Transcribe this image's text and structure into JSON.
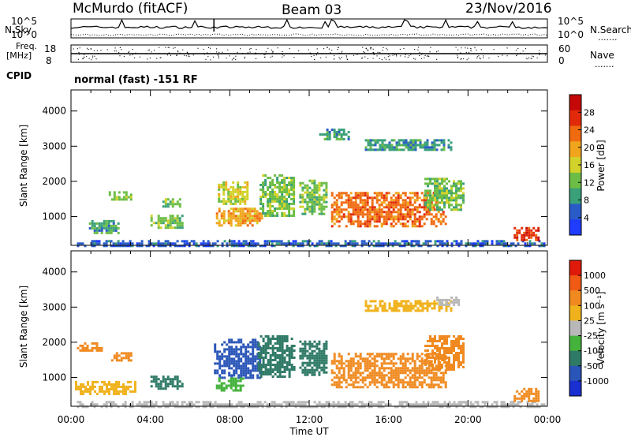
{
  "header": {
    "station": "McMurdo (fitACF)",
    "beam": "Beam 03",
    "date": "23/Nov/2016",
    "mode": "normal (fast) -151 RF"
  },
  "aux_labels": {
    "nsky": "N.Sky",
    "freq_line1": "Freq.",
    "freq_line2": "[MHz]",
    "cpid": "CPID",
    "nsearch": "N.Search",
    "nave": "Nave",
    "dots": "......."
  },
  "aux_ticks": {
    "noise_left": [
      "10^5",
      "10^0"
    ],
    "noise_right": [
      "10^5",
      "10^0"
    ],
    "freq_left": [
      "18",
      "8"
    ],
    "freq_right": [
      "60",
      "0"
    ]
  },
  "chart_data": [
    {
      "type": "heatmap",
      "panel": "power",
      "title": "",
      "xlabel": "Time UT",
      "ylabel": "Slant Range [km]",
      "x_ticks": [
        "00:00",
        "04:00",
        "08:00",
        "12:00",
        "16:00",
        "20:00",
        "00:00"
      ],
      "x_range_hours": [
        0,
        24
      ],
      "y_ticks": [
        1000,
        2000,
        3000,
        4000
      ],
      "y_range_km": [
        180,
        4600
      ],
      "colorbar_label": "Power [dB]",
      "colorbar_ticks": [
        "4",
        "8",
        "12",
        "16",
        "20",
        "24",
        "28"
      ],
      "colorbar_range": [
        0,
        32
      ],
      "colormap": [
        "#1f3cff",
        "#2a5cc8",
        "#3aa07a",
        "#6cbd45",
        "#d2d22a",
        "#f0a51c",
        "#f06a10",
        "#e22a0a",
        "#c40808"
      ],
      "regions": [
        {
          "t0": 0.3,
          "t1": 23.9,
          "r0": 190,
          "r1": 330,
          "level": 4
        },
        {
          "t0": 0.9,
          "t1": 2.4,
          "r0": 560,
          "r1": 900,
          "level": 9
        },
        {
          "t0": 1.9,
          "t1": 3.0,
          "r0": 1500,
          "r1": 1720,
          "level": 10
        },
        {
          "t0": 4.0,
          "t1": 5.6,
          "r0": 700,
          "r1": 1050,
          "level": 12
        },
        {
          "t0": 4.6,
          "t1": 5.5,
          "r0": 1300,
          "r1": 1520,
          "level": 11
        },
        {
          "t0": 7.3,
          "t1": 9.6,
          "r0": 750,
          "r1": 1250,
          "level": 19
        },
        {
          "t0": 7.4,
          "t1": 8.9,
          "r0": 1350,
          "r1": 2000,
          "level": 17
        },
        {
          "t0": 9.5,
          "t1": 11.2,
          "r0": 1000,
          "r1": 2200,
          "level": 11
        },
        {
          "t0": 11.5,
          "t1": 12.9,
          "r0": 1100,
          "r1": 2050,
          "level": 10
        },
        {
          "t0": 13.1,
          "t1": 18.9,
          "r0": 750,
          "r1": 1700,
          "level": 23
        },
        {
          "t0": 17.8,
          "t1": 19.8,
          "r0": 1200,
          "r1": 2100,
          "level": 13
        },
        {
          "t0": 22.3,
          "t1": 23.6,
          "r0": 300,
          "r1": 700,
          "level": 26
        },
        {
          "t0": 14.8,
          "t1": 19.2,
          "r0": 2900,
          "r1": 3200,
          "level": 9
        },
        {
          "t0": 12.5,
          "t1": 14.0,
          "r0": 3200,
          "r1": 3500,
          "level": 7
        }
      ]
    },
    {
      "type": "heatmap",
      "panel": "velocity",
      "title": "",
      "xlabel": "Time UT",
      "ylabel": "Slant Range [km]",
      "x_ticks": [
        "00:00",
        "04:00",
        "08:00",
        "12:00",
        "16:00",
        "20:00",
        "00:00"
      ],
      "x_range_hours": [
        0,
        24
      ],
      "y_ticks": [
        1000,
        2000,
        3000,
        4000
      ],
      "y_range_km": [
        180,
        4600
      ],
      "colorbar_label": "Velocity [m s⁻¹]",
      "colorbar_ticks": [
        "1000",
        "500",
        "100",
        "25",
        "-25",
        "-100",
        "-500",
        "-1000"
      ],
      "colormap": [
        "#1a2fd0",
        "#2a55b8",
        "#2f7a66",
        "#45b23c",
        "#b8b8b8",
        "#f0b21c",
        "#f08a20",
        "#f05a14",
        "#e01a0a"
      ],
      "regions": [
        {
          "t0": 0.3,
          "t1": 23.9,
          "r0": 190,
          "r1": 330,
          "class": 4
        },
        {
          "t0": 0.2,
          "t1": 3.2,
          "r0": 560,
          "r1": 900,
          "class": 5
        },
        {
          "t0": 1.9,
          "t1": 3.0,
          "r0": 1500,
          "r1": 1720,
          "class": 6
        },
        {
          "t0": 0.3,
          "t1": 1.6,
          "r0": 1750,
          "r1": 2000,
          "class": 6
        },
        {
          "t0": 4.0,
          "t1": 5.6,
          "r0": 700,
          "r1": 1050,
          "class": 2
        },
        {
          "t0": 7.2,
          "t1": 9.5,
          "r0": 1000,
          "r1": 2100,
          "class": 1
        },
        {
          "t0": 7.3,
          "t1": 8.7,
          "r0": 650,
          "r1": 1000,
          "class": 3
        },
        {
          "t0": 9.4,
          "t1": 11.2,
          "r0": 1000,
          "r1": 2200,
          "class": 2
        },
        {
          "t0": 11.5,
          "t1": 12.9,
          "r0": 1100,
          "r1": 2050,
          "class": 2
        },
        {
          "t0": 13.1,
          "t1": 18.9,
          "r0": 750,
          "r1": 1700,
          "class": 6
        },
        {
          "t0": 17.8,
          "t1": 19.8,
          "r0": 1200,
          "r1": 2200,
          "class": 6
        },
        {
          "t0": 22.3,
          "t1": 23.6,
          "r0": 300,
          "r1": 700,
          "class": 6
        },
        {
          "t0": 14.8,
          "t1": 19.2,
          "r0": 2900,
          "r1": 3200,
          "class": 5
        },
        {
          "t0": 18.4,
          "t1": 19.6,
          "r0": 3050,
          "r1": 3300,
          "class": 4
        }
      ]
    }
  ]
}
